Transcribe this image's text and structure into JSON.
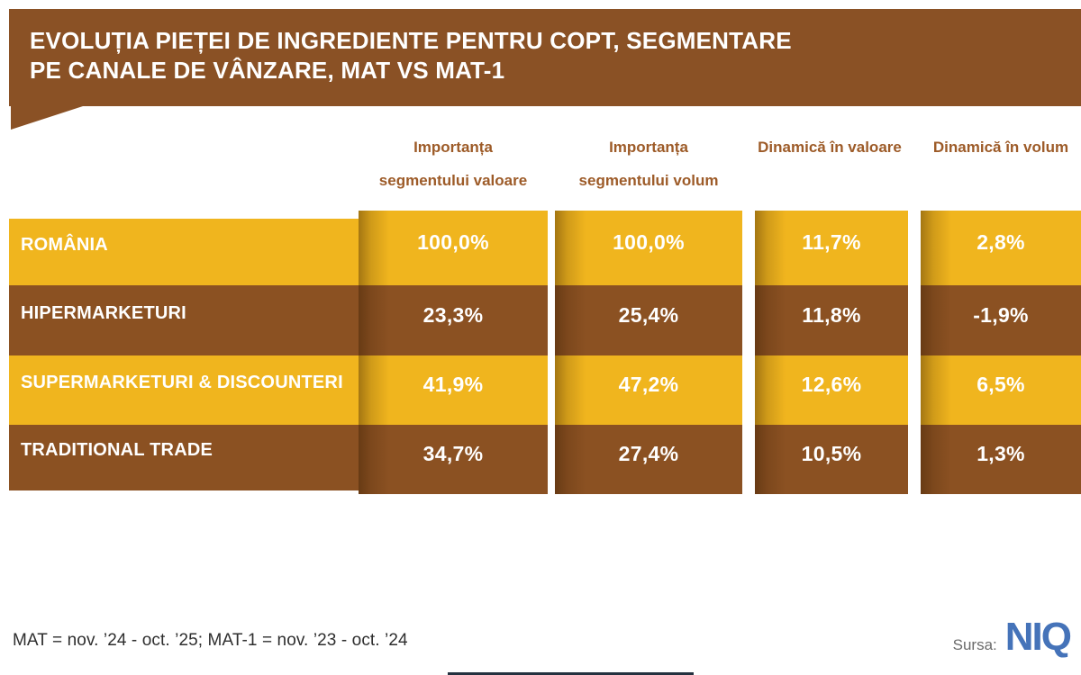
{
  "title": {
    "line1": "EVOLUȚIA PIEȚEI DE INGREDIENTE PENTRU COPT, SEGMENTARE",
    "line2": "PE CANALE DE VÂNZARE, MAT VS MAT-1"
  },
  "columns": [
    {
      "line1": "Importanța",
      "line2": "segmentului valoare"
    },
    {
      "line1": "Importanța",
      "line2": "segmentului volum"
    },
    {
      "line1": "Dinamică în valoare",
      "line2": ""
    },
    {
      "line1": "Dinamică în volum",
      "line2": ""
    }
  ],
  "rows": [
    {
      "label": "ROMÂNIA",
      "values": [
        "100,0%",
        "100,0%",
        "11,7%",
        "2,8%"
      ]
    },
    {
      "label": "HIPERMARKETURI",
      "values": [
        "23,3%",
        "25,4%",
        "11,8%",
        "-1,9%"
      ]
    },
    {
      "label": "SUPERMARKETURI & DISCOUNTERI",
      "values": [
        "41,9%",
        "47,2%",
        "12,6%",
        "6,5%"
      ]
    },
    {
      "label": "TRADITIONAL TRADE",
      "values": [
        "34,7%",
        "27,4%",
        "10,5%",
        "1,3%"
      ]
    }
  ],
  "footer": {
    "note": "MAT = nov. ’24 - oct. ’25; MAT-1 = nov. ’23 - oct. ’24",
    "source_label": "Sursa:",
    "source_name": "NIQ"
  },
  "colors": {
    "banner_brown": "#8A5125",
    "row_brown": "#8B5122",
    "row_yellow": "#F0B51E",
    "header_text_brown": "#9D5B28",
    "niq_blue": "#4573B9",
    "value_text": "#FFFFFF"
  },
  "chart_data": {
    "type": "table",
    "title": "EVOLUȚIA PIEȚEI DE INGREDIENTE PENTRU COPT, SEGMENTARE PE CANALE DE VÂNZARE, MAT VS MAT-1",
    "columns": [
      "Importanța segmentului valoare",
      "Importanța segmentului volum",
      "Dinamică în valoare",
      "Dinamică în volum"
    ],
    "row_labels": [
      "ROMÂNIA",
      "HIPERMARKETURI",
      "SUPERMARKETURI & DISCOUNTERI",
      "TRADITIONAL TRADE"
    ],
    "values_pct": [
      [
        100.0,
        100.0,
        11.7,
        2.8
      ],
      [
        23.3,
        25.4,
        11.8,
        -1.9
      ],
      [
        41.9,
        47.2,
        12.6,
        6.5
      ],
      [
        34.7,
        27.4,
        10.5,
        1.3
      ]
    ],
    "note": "MAT = nov. ’24 - oct. ’25; MAT-1 = nov. ’23 - oct. ’24",
    "source": "NIQ",
    "legend_position": "none",
    "grid": false
  }
}
